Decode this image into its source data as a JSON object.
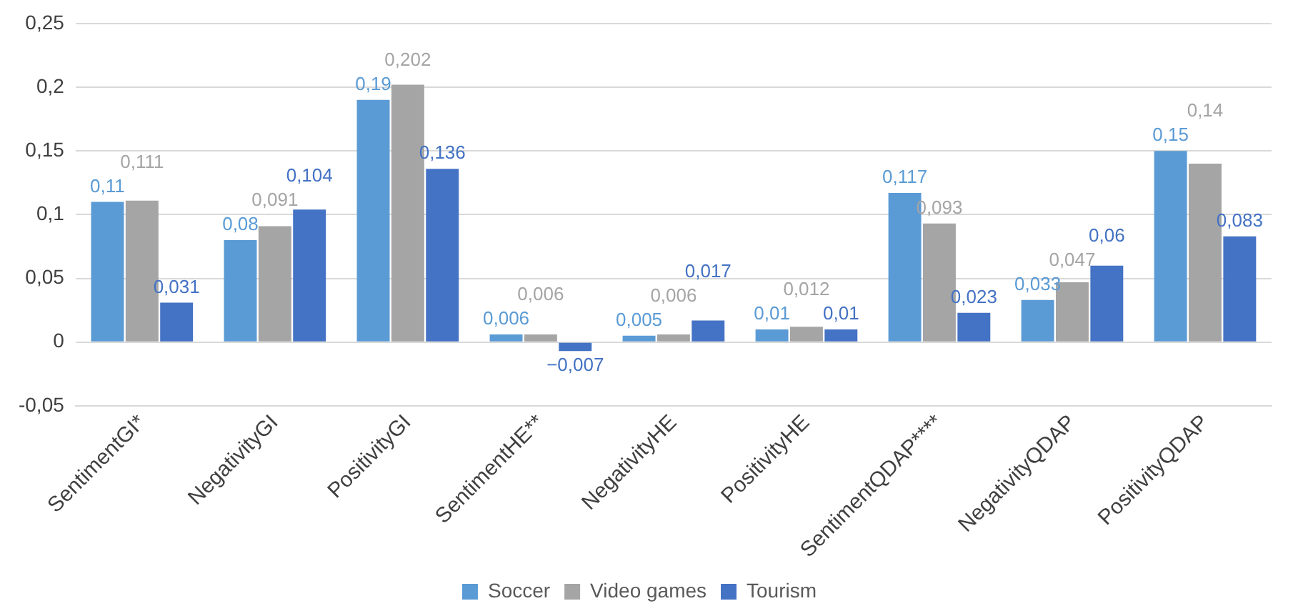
{
  "chart_data": {
    "type": "bar",
    "categories": [
      "SentimentGI*",
      "NegativityGI",
      "PositivityGI",
      "SentimentHE**",
      "NegativityHE",
      "PositivityHE",
      "SentimentQDAP****",
      "NegativityQDAP",
      "PositivityQDAP"
    ],
    "series": [
      {
        "name": "Soccer",
        "color": "#5b9bd5",
        "values": [
          0.11,
          0.08,
          0.19,
          0.006,
          0.005,
          0.01,
          0.117,
          0.033,
          0.15
        ],
        "value_labels": [
          "0,11",
          "0,08",
          "0,19",
          "0,006",
          "0,005",
          "0,01",
          "0,117",
          "0,033",
          "0,15"
        ]
      },
      {
        "name": "Video games",
        "color": "#a5a5a5",
        "values": [
          0.111,
          0.091,
          0.202,
          0.006,
          0.006,
          0.012,
          0.093,
          0.047,
          0.14
        ],
        "value_labels": [
          "0,111",
          "0,091",
          "0,202",
          "0,006",
          "0,006",
          "0,012",
          "0,093",
          "0,047",
          "0,14"
        ]
      },
      {
        "name": "Tourism",
        "color": "#4472c4",
        "values": [
          0.031,
          0.104,
          0.136,
          -0.007,
          0.017,
          0.01,
          0.023,
          0.06,
          0.083
        ],
        "value_labels": [
          "0,031",
          "0,104",
          "0,136",
          "−0,007",
          "0,017",
          "0,01",
          "0,023",
          "0,06",
          "0,083"
        ]
      }
    ],
    "ylim": [
      -0.05,
      0.25
    ],
    "yticks": [
      {
        "value": -0.05,
        "label": "-0,05"
      },
      0,
      {
        "value": 0.05,
        "label": "0,05"
      },
      {
        "value": 0.1,
        "label": "0,1"
      },
      {
        "value": 0.15,
        "label": "0,15"
      },
      {
        "value": 0.2,
        "label": "0,2"
      },
      {
        "value": 0.25,
        "label": "0,25"
      }
    ],
    "grid": "y",
    "legend": "bottom"
  }
}
